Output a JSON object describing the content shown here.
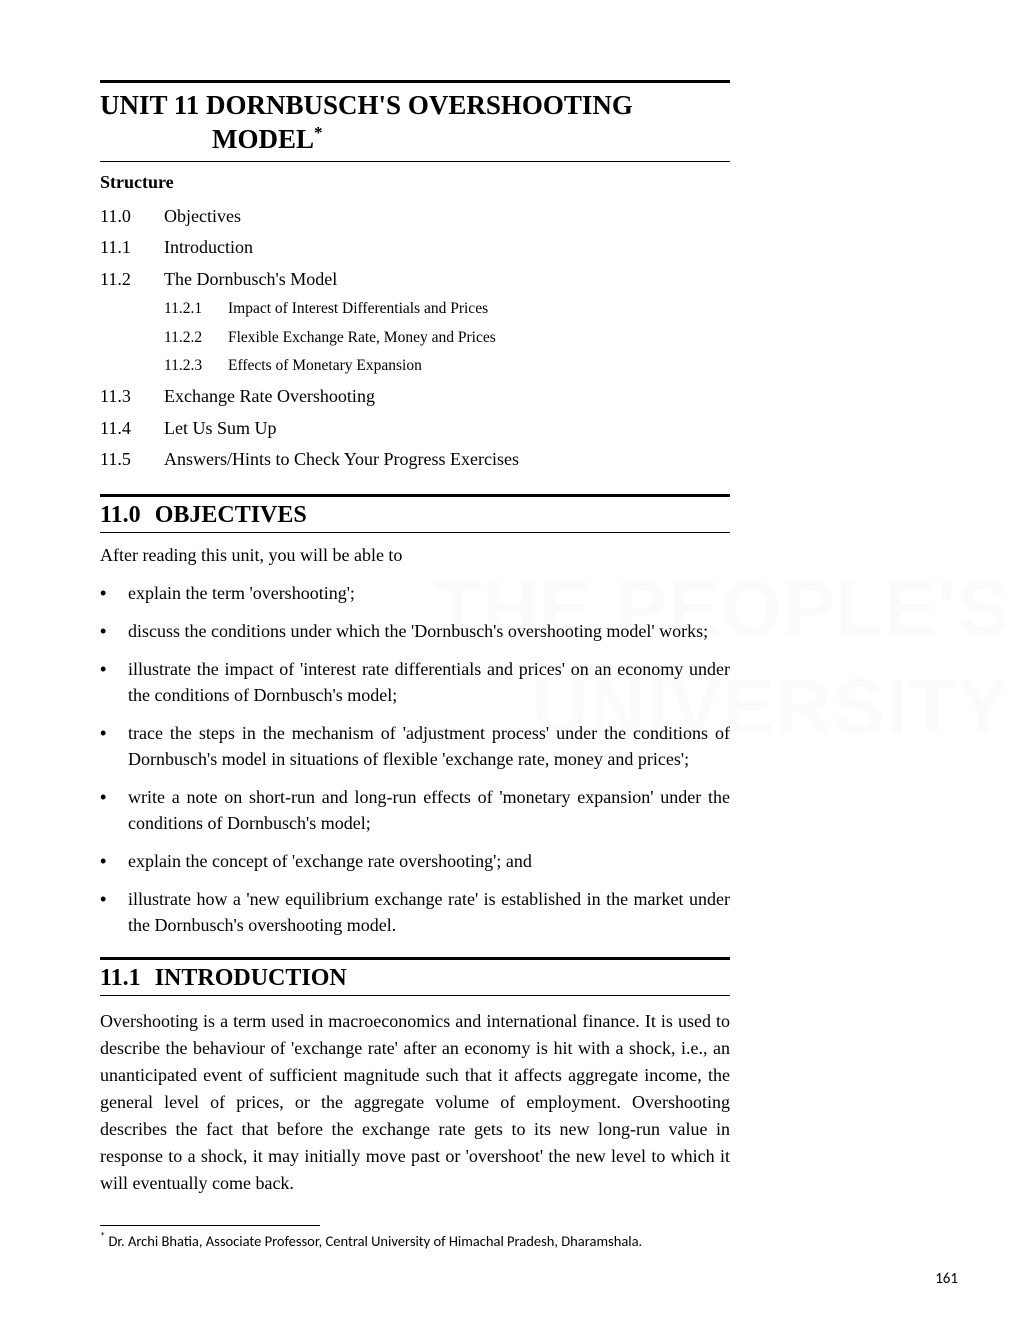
{
  "unit": {
    "title_line1": "UNIT 11 DORNBUSCH'S OVERSHOOTING",
    "title_line2": "MODEL",
    "asterisk": "*"
  },
  "structure_label": "Structure",
  "toc": [
    {
      "num": "11.0",
      "label": "Objectives"
    },
    {
      "num": "11.1",
      "label": "Introduction"
    },
    {
      "num": "11.2",
      "label": "The Dornbusch's Model",
      "subs": [
        {
          "num": "11.2.1",
          "label": "Impact of Interest Differentials and Prices"
        },
        {
          "num": "11.2.2",
          "label": "Flexible Exchange Rate, Money and Prices"
        },
        {
          "num": "11.2.3",
          "label": "Effects of Monetary Expansion"
        }
      ]
    },
    {
      "num": "11.3",
      "label": "Exchange Rate Overshooting"
    },
    {
      "num": "11.4",
      "label": "Let Us Sum Up"
    },
    {
      "num": "11.5",
      "label": "Answers/Hints to Check Your Progress Exercises"
    }
  ],
  "sections": {
    "objectives": {
      "num": "11.0",
      "title": "OBJECTIVES"
    },
    "introduction": {
      "num": "11.1",
      "title": "INTRODUCTION"
    }
  },
  "objectives_intro": "After reading this unit, you will be able to",
  "objectives_items": [
    "explain the term 'overshooting';",
    "discuss the conditions under which the 'Dornbusch's overshooting model' works;",
    "illustrate the impact of 'interest rate differentials and prices' on an economy under the conditions of Dornbusch's model;",
    "trace the steps in the mechanism of 'adjustment process' under the conditions of Dornbusch's model in situations of flexible 'exchange rate, money and prices';",
    "write a note on short-run and long-run effects of 'monetary expansion' under the conditions of Dornbusch's model;",
    "explain the concept of 'exchange rate overshooting'; and",
    "illustrate how a 'new equilibrium exchange rate' is established in the market under the Dornbusch's overshooting model."
  ],
  "introduction_para": "Overshooting is a term used in macroeconomics and international finance. It is used to describe the behaviour of 'exchange rate' after an economy is hit with a shock, i.e., an unanticipated event of sufficient magnitude such that it affects aggregate income, the general level of prices, or the aggregate volume of employment. Overshooting describes the fact that before the exchange rate gets to its new long-run value in response to a shock, it may initially move past or 'overshoot' the new level to which it will eventually come back.",
  "footnote": {
    "mark": "*",
    "text": "Dr. Archi Bhatia, Associate Professor, Central University of Himachal Pradesh, Dharamshala."
  },
  "page_number": "161",
  "watermark": "THE PEOPLE'S\nUNIVERSITY",
  "bullet_char": "•"
}
